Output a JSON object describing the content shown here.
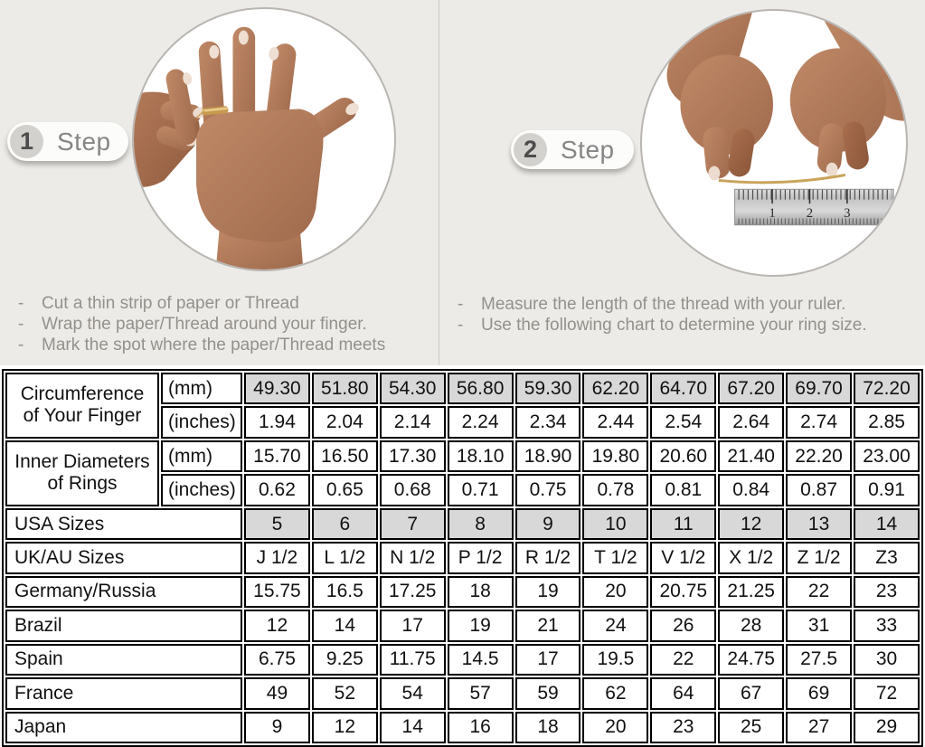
{
  "bullet": "-",
  "colors": {
    "top_background": "#edebe7",
    "table_shaded_cell": "#d8d8d8",
    "table_border": "#000000",
    "gold_thread": "#c9a45c",
    "instruction_text": "#94918c",
    "step_text": "#868686"
  },
  "steps": [
    {
      "badge_number": "1",
      "badge_label": "Step",
      "photo": "hand-with-thread-wrapped-around-ring-finger",
      "instructions": [
        "Cut a thin strip of paper or Thread",
        "Wrap the paper/Thread around your finger.",
        "Mark the spot where the paper/Thread meets"
      ]
    },
    {
      "badge_number": "2",
      "badge_label": "Step",
      "photo": "hands-measuring-thread-with-ruler",
      "ruler_numbers": [
        "1",
        "2",
        "3"
      ],
      "instructions": [
        "Measure the length of the thread with your ruler.",
        "Use the following chart to determine your ring size."
      ]
    }
  ],
  "size_chart": {
    "groups": [
      {
        "label": "Circumference of Your Finger",
        "rows": [
          {
            "unit": "(mm)",
            "shaded": true,
            "values": [
              "49.30",
              "51.80",
              "54.30",
              "56.80",
              "59.30",
              "62.20",
              "64.70",
              "67.20",
              "69.70",
              "72.20"
            ]
          },
          {
            "unit": "(inches)",
            "shaded": false,
            "values": [
              "1.94",
              "2.04",
              "2.14",
              "2.24",
              "2.34",
              "2.44",
              "2.54",
              "2.64",
              "2.74",
              "2.85"
            ]
          }
        ]
      },
      {
        "label": "Inner Diameters of Rings",
        "rows": [
          {
            "unit": "(mm)",
            "shaded": false,
            "values": [
              "15.70",
              "16.50",
              "17.30",
              "18.10",
              "18.90",
              "19.80",
              "20.60",
              "21.40",
              "22.20",
              "23.00"
            ]
          },
          {
            "unit": "(inches)",
            "shaded": false,
            "values": [
              "0.62",
              "0.65",
              "0.68",
              "0.71",
              "0.75",
              "0.78",
              "0.81",
              "0.84",
              "0.87",
              "0.91"
            ]
          }
        ]
      }
    ],
    "rows": [
      {
        "label": "USA Sizes",
        "shaded": true,
        "values": [
          "5",
          "6",
          "7",
          "8",
          "9",
          "10",
          "11",
          "12",
          "13",
          "14"
        ]
      },
      {
        "label": "UK/AU Sizes",
        "shaded": false,
        "values": [
          "J 1/2",
          "L 1/2",
          "N 1/2",
          "P 1/2",
          "R 1/2",
          "T 1/2",
          "V 1/2",
          "X 1/2",
          "Z 1/2",
          "Z3"
        ]
      },
      {
        "label": "Germany/Russia",
        "shaded": false,
        "values": [
          "15.75",
          "16.5",
          "17.25",
          "18",
          "19",
          "20",
          "20.75",
          "21.25",
          "22",
          "23"
        ]
      },
      {
        "label": "Brazil",
        "shaded": false,
        "values": [
          "12",
          "14",
          "17",
          "19",
          "21",
          "24",
          "26",
          "28",
          "31",
          "33"
        ]
      },
      {
        "label": "Spain",
        "shaded": false,
        "values": [
          "6.75",
          "9.25",
          "11.75",
          "14.5",
          "17",
          "19.5",
          "22",
          "24.75",
          "27.5",
          "30"
        ]
      },
      {
        "label": "France",
        "shaded": false,
        "values": [
          "49",
          "52",
          "54",
          "57",
          "59",
          "62",
          "64",
          "67",
          "69",
          "72"
        ]
      },
      {
        "label": "Japan",
        "shaded": false,
        "values": [
          "9",
          "12",
          "14",
          "16",
          "18",
          "20",
          "23",
          "25",
          "27",
          "29"
        ]
      }
    ]
  }
}
